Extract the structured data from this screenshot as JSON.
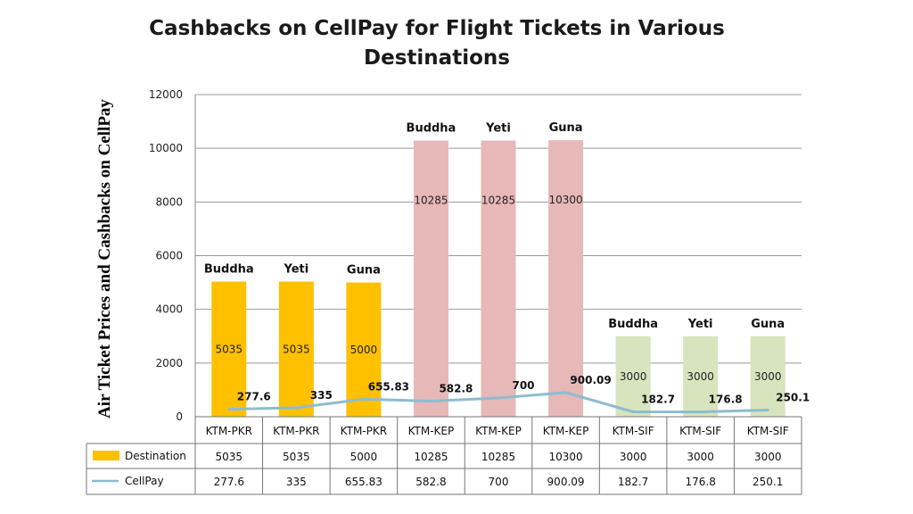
{
  "chart_data": {
    "type": "bar",
    "title": "Cashbacks on CellPay for Flight Tickets in Various Destinations",
    "ylabel": "Air Ticket Prices  and Cashbacks on CellPay",
    "xlabel": "",
    "ylim": [
      0,
      12000
    ],
    "yticks": [
      "0",
      "2000",
      "4000",
      "6000",
      "8000",
      "10000",
      "12000"
    ],
    "grid": true,
    "legend": "data-table-left",
    "categories": [
      "KTM-PKR",
      "KTM-PKR",
      "KTM-PKR",
      "KTM-KEP",
      "KTM-KEP",
      "KTM-KEP",
      "KTM-SIF",
      "KTM-SIF",
      "KTM-SIF"
    ],
    "airlines": [
      "Buddha",
      "Yeti",
      "Guna",
      "Buddha",
      "Yeti",
      "Guna",
      "Buddha",
      "Yeti",
      "Guna"
    ],
    "series": [
      {
        "name": "Destination",
        "kind": "bar",
        "values": [
          5035,
          5035,
          5000,
          10285,
          10285,
          10300,
          3000,
          3000,
          3000
        ],
        "labels": [
          "5035",
          "5035",
          "5000",
          "10285",
          "10285",
          "10300",
          "3000",
          "3000",
          "3000"
        ]
      },
      {
        "name": "CellPay",
        "kind": "line",
        "color": "#8dbccf",
        "values": [
          277.6,
          335,
          655.83,
          582.8,
          700,
          900.09,
          182.7,
          176.8,
          250.1
        ],
        "labels": [
          "277.6",
          "335",
          "655.83",
          "582.8",
          "700",
          "900.09",
          "182.7",
          "176.8",
          "250.1"
        ]
      }
    ],
    "bar_colors": [
      "#ffc000",
      "#ffc000",
      "#ffc000",
      "#e6b8b7",
      "#e6b8b7",
      "#e6b8b7",
      "#d7e4bd",
      "#d7e4bd",
      "#d7e4bd"
    ]
  }
}
